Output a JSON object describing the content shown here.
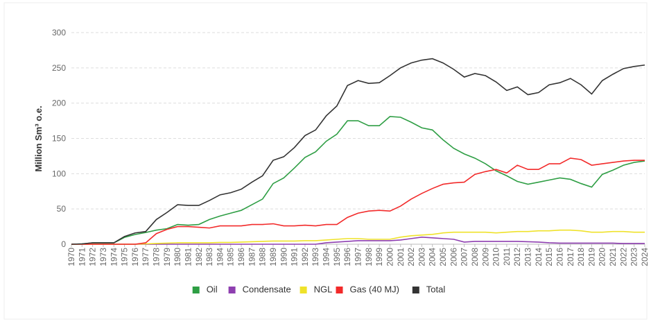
{
  "chart_data": {
    "type": "line",
    "y_label": "Million Sm³ o.e.",
    "categories": [
      "1970",
      "1971",
      "1972",
      "1973",
      "1974",
      "1975",
      "1976",
      "1977",
      "1978",
      "1979",
      "1980",
      "1981",
      "1982",
      "1983",
      "1984",
      "1985",
      "1986",
      "1987",
      "1988",
      "1989",
      "1990",
      "1991",
      "1992",
      "1993",
      "1994",
      "1995",
      "1996",
      "1997",
      "1998",
      "1999",
      "2000",
      "2001",
      "2002",
      "2003",
      "2004",
      "2005",
      "2006",
      "2007",
      "2008",
      "2009",
      "2010",
      "2011",
      "2012",
      "2013",
      "2014",
      "2015",
      "2016",
      "2017",
      "2018",
      "2019",
      "2020",
      "2021",
      "2022",
      "2023",
      "2024"
    ],
    "ylim": [
      0,
      300
    ],
    "yticks": [
      0,
      50,
      100,
      150,
      200,
      250,
      300
    ],
    "grid": true,
    "series": [
      {
        "name": "Oil",
        "color": "#2e9e44",
        "values": [
          0,
          0.4,
          1.9,
          1.9,
          1.9,
          9.7,
          13.8,
          16.6,
          20,
          22,
          28,
          27,
          28,
          35,
          40,
          44,
          48,
          56,
          64,
          86,
          94,
          108,
          123,
          131,
          146,
          156,
          175,
          175,
          168,
          168,
          181,
          180,
          173,
          165,
          162,
          148,
          136,
          128,
          122,
          114,
          104,
          97,
          89,
          85,
          88,
          91,
          94,
          92,
          86,
          81,
          99,
          105,
          112,
          116,
          118
        ]
      },
      {
        "name": "Condensate",
        "color": "#8e3fb0",
        "values": [
          0,
          0,
          0,
          0,
          0,
          0,
          0,
          0,
          0,
          0,
          0,
          0,
          0,
          0,
          0,
          0,
          0,
          0,
          0,
          0,
          0,
          0,
          0,
          0,
          2,
          3,
          4,
          5,
          5,
          5,
          5,
          6,
          8,
          10,
          9,
          8,
          7,
          3,
          4,
          4,
          4,
          4,
          4,
          3.5,
          3,
          2,
          1.5,
          1.5,
          1.5,
          1.5,
          1.5,
          1.5,
          1,
          1,
          1
        ]
      },
      {
        "name": "NGL",
        "color": "#efe22a",
        "values": [
          0,
          0,
          0,
          0,
          0,
          0,
          0,
          0.5,
          1,
          1.5,
          2,
          2,
          2,
          2,
          2.5,
          2.5,
          3,
          3.5,
          4,
          4.5,
          4.5,
          4.5,
          5,
          5,
          6,
          7,
          8,
          8,
          7,
          7,
          7,
          10,
          12,
          13,
          14,
          16,
          17,
          17,
          17,
          17,
          16,
          17,
          18,
          18,
          19,
          19,
          20,
          20,
          19,
          17,
          17,
          18,
          18,
          17,
          17
        ]
      },
      {
        "name": "Gas (40 MJ)",
        "color": "#f22a2a",
        "values": [
          0,
          0,
          0,
          0,
          0,
          0,
          0,
          2,
          15,
          21,
          25,
          25,
          24,
          23,
          26,
          26,
          26,
          28,
          28,
          29,
          26,
          26,
          27,
          26,
          28,
          28,
          38,
          44,
          47,
          48,
          47,
          54,
          64,
          72,
          79,
          85,
          87,
          88,
          99,
          103,
          106,
          101,
          112,
          106,
          106,
          114,
          114,
          122,
          120,
          112,
          114,
          116,
          118,
          119,
          119
        ]
      },
      {
        "name": "Total",
        "color": "#333333",
        "values": [
          0,
          0.5,
          2,
          2,
          2,
          11,
          16,
          18,
          35,
          45,
          56,
          55,
          55,
          62,
          70,
          73,
          78,
          88,
          97,
          119,
          124,
          137,
          154,
          162,
          182,
          196,
          225,
          232,
          228,
          229,
          239,
          250,
          257,
          261,
          263,
          257,
          248,
          237,
          242,
          239,
          230,
          218,
          223,
          212,
          215,
          226,
          229,
          235,
          226,
          213,
          232,
          241,
          249,
          252,
          254
        ]
      }
    ]
  }
}
